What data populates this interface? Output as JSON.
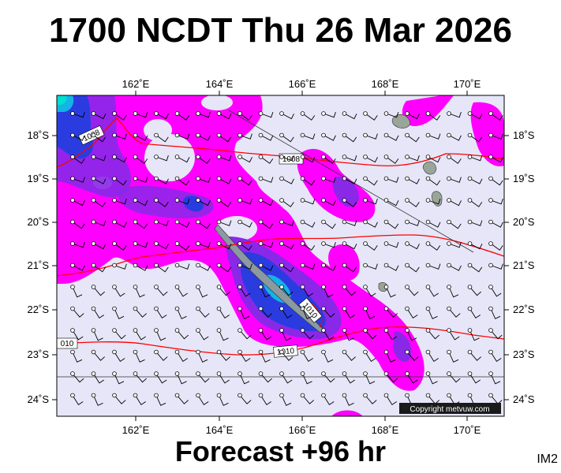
{
  "header": {
    "title": "1700 NCDT Thu 26 Mar 2026"
  },
  "footer": {
    "forecast": "Forecast +96 hr",
    "tag": "IM2"
  },
  "map": {
    "lon_labels": [
      "162˚E",
      "164˚E",
      "166˚E",
      "168˚E",
      "170˚E"
    ],
    "lat_labels": [
      "18˚S",
      "19˚S",
      "20˚S",
      "21˚S",
      "22˚S",
      "23˚S",
      "24˚S"
    ],
    "isobars": [
      "1008",
      "1008",
      "1010",
      "1010",
      "010"
    ],
    "copyright": "Copyright metvuw.com",
    "colors": {
      "background": "#e6e6f8",
      "rain_light": "#ff00ff",
      "rain_mid": "#7a20e0",
      "rain_heavy": "#1a36d8",
      "rain_extreme": "#00c8e0",
      "isobar": "#ff0000",
      "land": "#9aa59a"
    }
  }
}
